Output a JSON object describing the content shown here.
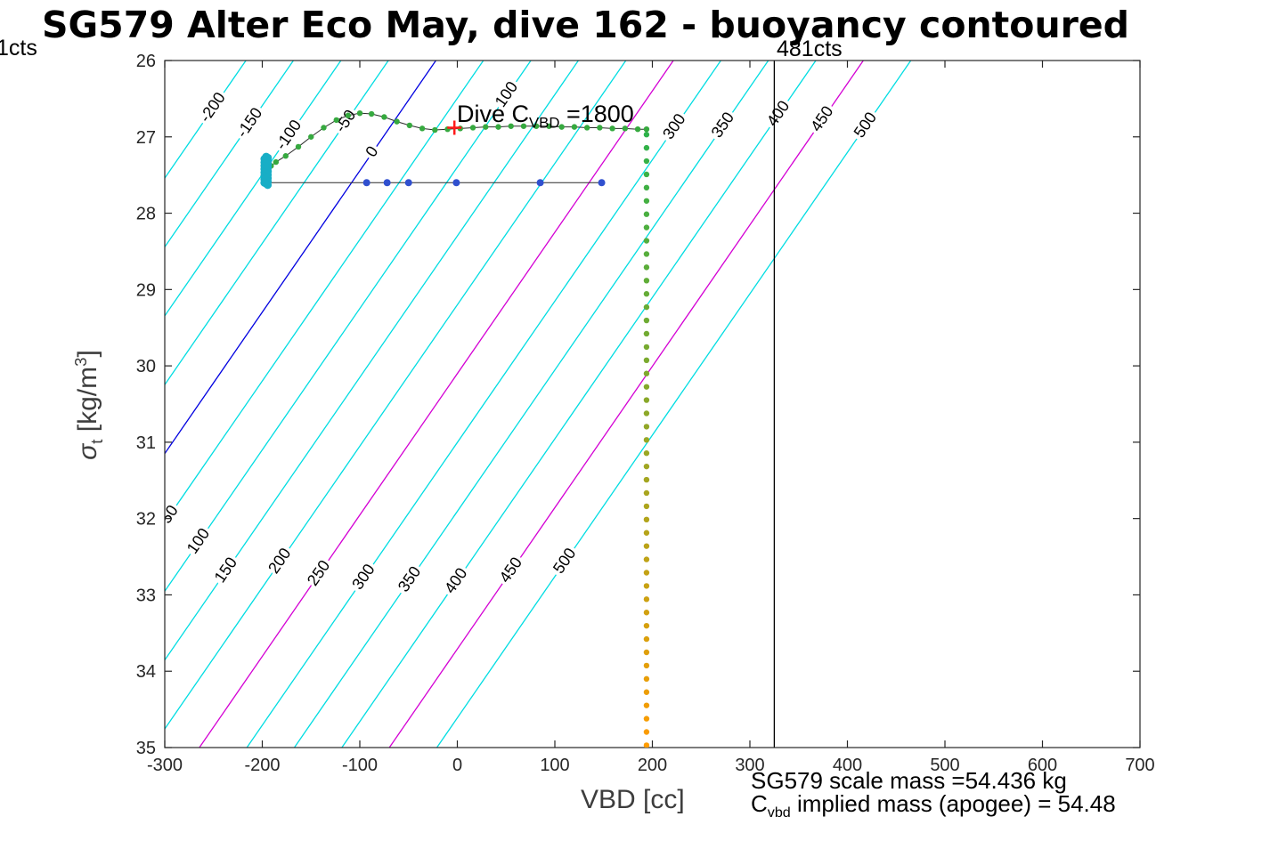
{
  "title": "SG579 Alter Eco May, dive 162 - buoyancy contoured",
  "labels": {
    "left_cts": "1cts",
    "right_cts": "481cts",
    "xlabel": "VBD [cc]",
    "ylabel_sigma": "σ",
    "ylabel_sub": "t",
    "ylabel_units_prefix": " [kg/m",
    "ylabel_units_sup": "3",
    "ylabel_units_suffix": "]"
  },
  "annotations": {
    "dive_prefix": "Dive C",
    "dive_sub": "VBD",
    "dive_suffix": " =1800",
    "scale_mass": "SG579 scale mass =54.436 kg",
    "implied_prefix": "C",
    "implied_sub": "vbd",
    "implied_suffix": " implied mass (apogee) = 54.48"
  },
  "chart_data": {
    "type": "scatter",
    "subtype": "buoyancy-contour-overlay",
    "title": "SG579 Alter Eco May, dive 162 - buoyancy contoured",
    "xlabel": "VBD [cc]",
    "ylabel": "sigma_t [kg/m^3]",
    "xlim": [
      -300,
      700
    ],
    "ylim": [
      26,
      35
    ],
    "y_axis_reversed": true,
    "grid": false,
    "x_ticks": [
      -300,
      -200,
      -100,
      0,
      100,
      200,
      300,
      400,
      500,
      600,
      700
    ],
    "y_ticks": [
      26,
      27,
      28,
      29,
      30,
      31,
      32,
      33,
      34,
      35
    ],
    "axis_color": "#262626",
    "contours": {
      "values": [
        -200,
        -150,
        -100,
        -50,
        0,
        50,
        100,
        150,
        200,
        250,
        300,
        350,
        400,
        450,
        500
      ],
      "base_vbd_at_c0_sigma26": -22,
      "vbd_per_contour_unit": 0.974,
      "vbd_per_sigma": 54,
      "default_color": "#00dde2",
      "highlight_colors": {
        "0": "#0000e0",
        "250": "#d400d4",
        "450": "#d400d4"
      },
      "label_positions": [
        {
          "c": -200,
          "s": 26.62
        },
        {
          "c": -150,
          "s": 26.82
        },
        {
          "c": -100,
          "s": 26.98
        },
        {
          "c": -50,
          "s": 26.8
        },
        {
          "c": 0,
          "s": 27.2
        },
        {
          "c": 100,
          "s": 26.45
        },
        {
          "c": 300,
          "s": 26.87
        },
        {
          "c": 350,
          "s": 26.85
        },
        {
          "c": 400,
          "s": 26.7
        },
        {
          "c": 450,
          "s": 26.77
        },
        {
          "c": 500,
          "s": 26.85
        },
        {
          "c": 50,
          "s": 31.95
        },
        {
          "c": 100,
          "s": 32.3
        },
        {
          "c": 150,
          "s": 32.68
        },
        {
          "c": 200,
          "s": 32.56
        },
        {
          "c": 250,
          "s": 32.72
        },
        {
          "c": 300,
          "s": 32.77
        },
        {
          "c": 350,
          "s": 32.8
        },
        {
          "c": 400,
          "s": 32.82
        },
        {
          "c": 450,
          "s": 32.68
        },
        {
          "c": 500,
          "s": 32.56
        }
      ]
    },
    "vline": {
      "x": 325,
      "color": "#000000",
      "label": "481cts"
    },
    "series": [
      {
        "name": "dive_vbd_samples",
        "type": "scatter-line",
        "color": "#3050cf",
        "line_color": "#2a2a2a",
        "r": 4,
        "points": [
          [
            -196,
            27.6
          ],
          [
            -93,
            27.6
          ],
          [
            -72,
            27.6
          ],
          [
            -50,
            27.6
          ],
          [
            -1,
            27.6
          ],
          [
            85,
            27.6
          ],
          [
            148,
            27.6
          ]
        ]
      },
      {
        "name": "apogee_track",
        "type": "scatter-line",
        "color": "#36a93f",
        "line_color": "#2a2a2a",
        "r": 3.2,
        "points": [
          [
            -191,
            27.38
          ],
          [
            -186,
            27.33
          ],
          [
            -176,
            27.25
          ],
          [
            -163,
            27.13
          ],
          [
            -150,
            27.0
          ],
          [
            -137,
            26.88
          ],
          [
            -124,
            26.78
          ],
          [
            -112,
            26.72
          ],
          [
            -100,
            26.69
          ],
          [
            -88,
            26.7
          ],
          [
            -75,
            26.74
          ],
          [
            -62,
            26.8
          ],
          [
            -49,
            26.85
          ],
          [
            -36,
            26.89
          ],
          [
            -23,
            26.91
          ],
          [
            -10,
            26.9
          ],
          [
            3,
            26.89
          ],
          [
            16,
            26.88
          ],
          [
            29,
            26.87
          ],
          [
            42,
            26.87
          ],
          [
            55,
            26.86
          ],
          [
            68,
            26.86
          ],
          [
            81,
            26.86
          ],
          [
            94,
            26.86
          ],
          [
            107,
            26.87
          ],
          [
            120,
            26.87
          ],
          [
            133,
            26.88
          ],
          [
            146,
            26.88
          ],
          [
            159,
            26.89
          ],
          [
            172,
            26.89
          ],
          [
            185,
            26.9
          ],
          [
            194,
            26.9
          ]
        ]
      },
      {
        "name": "surface_cluster",
        "type": "cluster",
        "color": "#18aec6",
        "x": -196,
        "sigma_from": 27.26,
        "sigma_to": 27.63,
        "n": 26,
        "jitter": 2,
        "r": 4.5
      },
      {
        "name": "cvbd_depth_line",
        "type": "gradient-line",
        "x": 194,
        "sigma_from": 26.97,
        "sigma_to": 34.97,
        "n": 47,
        "color_from": "#2eb24a",
        "color_to": "#ff9c00",
        "r": 3.2
      },
      {
        "name": "apogee_point",
        "type": "marker-plus",
        "color": "#ff1a1a",
        "point": [
          -3,
          26.88
        ],
        "size": 8
      }
    ]
  }
}
